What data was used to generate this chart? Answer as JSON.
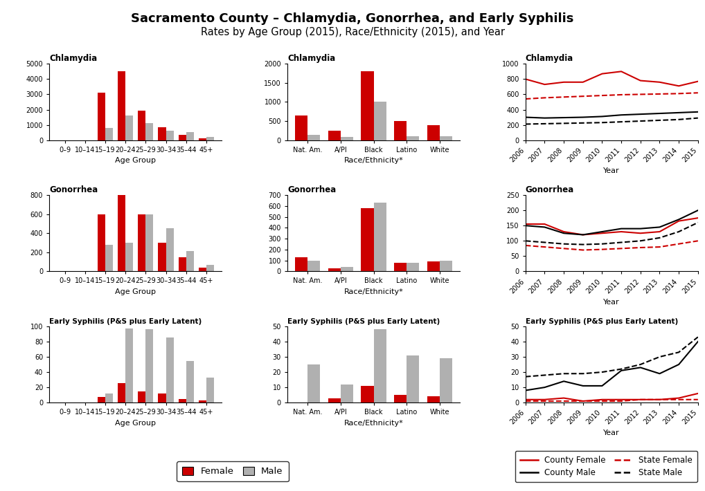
{
  "title_line1": "Sacramento County – Chlamydia, Gonorrhea, and Early Syphilis",
  "title_line2": "Rates by Age Group (2015), Race/Ethnicity (2015), and Year",
  "chlamydia_age_cats": [
    "0–9",
    "10–14",
    "15–19",
    "20–24",
    "25–29",
    "30–34",
    "35–44",
    "45+"
  ],
  "chlamydia_age_female": [
    0,
    0,
    3100,
    4500,
    1950,
    850,
    350,
    100
  ],
  "chlamydia_age_male": [
    0,
    0,
    800,
    1600,
    1100,
    600,
    550,
    200
  ],
  "chlamydia_race_cats": [
    "Nat. Am.",
    "A/PI",
    "Black",
    "Latino",
    "White"
  ],
  "chlamydia_race_female": [
    650,
    250,
    1800,
    500,
    400
  ],
  "chlamydia_race_male": [
    130,
    80,
    1000,
    100,
    100
  ],
  "chlamydia_year_years": [
    2006,
    2007,
    2008,
    2009,
    2010,
    2011,
    2012,
    2013,
    2014,
    2015
  ],
  "chlamydia_county_female": [
    800,
    730,
    760,
    760,
    870,
    900,
    780,
    760,
    710,
    770
  ],
  "chlamydia_state_female": [
    540,
    555,
    565,
    575,
    585,
    595,
    600,
    605,
    610,
    620
  ],
  "chlamydia_county_male": [
    300,
    290,
    295,
    300,
    310,
    330,
    340,
    350,
    360,
    370
  ],
  "chlamydia_state_male": [
    210,
    215,
    220,
    225,
    230,
    240,
    250,
    260,
    270,
    290
  ],
  "gonorrhea_age_cats": [
    "0–9",
    "10–14",
    "15–19",
    "20–24",
    "25–29",
    "30–34",
    "35–44",
    "45+"
  ],
  "gonorrhea_age_female": [
    0,
    0,
    600,
    800,
    600,
    300,
    150,
    40
  ],
  "gonorrhea_age_male": [
    0,
    0,
    280,
    300,
    600,
    450,
    210,
    70
  ],
  "gonorrhea_race_cats": [
    "Nat. Am.",
    "A/PI",
    "Black",
    "Latino",
    "White"
  ],
  "gonorrhea_race_female": [
    130,
    30,
    580,
    80,
    90
  ],
  "gonorrhea_race_male": [
    100,
    40,
    630,
    80,
    100
  ],
  "gonorrhea_year_years": [
    2006,
    2007,
    2008,
    2009,
    2010,
    2011,
    2012,
    2013,
    2014,
    2015
  ],
  "gonorrhea_county_female": [
    155,
    155,
    130,
    120,
    125,
    130,
    125,
    130,
    165,
    175
  ],
  "gonorrhea_state_female": [
    85,
    80,
    75,
    70,
    72,
    75,
    78,
    80,
    90,
    100
  ],
  "gonorrhea_county_male": [
    150,
    145,
    125,
    120,
    130,
    140,
    140,
    145,
    170,
    200
  ],
  "gonorrhea_state_male": [
    100,
    95,
    90,
    88,
    90,
    95,
    100,
    110,
    130,
    160
  ],
  "syphilis_age_cats": [
    "0–9",
    "10–14",
    "15–19",
    "20–24",
    "25–29",
    "30–34",
    "35–44",
    "45+"
  ],
  "syphilis_age_female": [
    0,
    0,
    7,
    26,
    15,
    12,
    5,
    3
  ],
  "syphilis_age_male": [
    0,
    0,
    12,
    97,
    96,
    85,
    55,
    33
  ],
  "syphilis_race_cats": [
    "Nat. Am.",
    "A/PI",
    "Black",
    "Latino",
    "White"
  ],
  "syphilis_race_female": [
    0,
    3,
    11,
    5,
    4
  ],
  "syphilis_race_male": [
    25,
    12,
    48,
    31,
    29
  ],
  "syphilis_year_years": [
    2006,
    2007,
    2008,
    2009,
    2010,
    2011,
    2012,
    2013,
    2014,
    2015
  ],
  "syphilis_county_female": [
    2,
    2,
    3,
    1,
    2,
    2,
    2,
    2,
    3,
    6
  ],
  "syphilis_state_female": [
    1,
    1,
    1,
    1,
    1,
    1,
    2,
    2,
    2,
    2
  ],
  "syphilis_county_male": [
    8,
    10,
    14,
    11,
    11,
    21,
    23,
    19,
    25,
    40
  ],
  "syphilis_state_male": [
    17,
    18,
    19,
    19,
    20,
    22,
    25,
    30,
    33,
    43
  ],
  "female_color": "#cc0000",
  "male_color": "#b0b0b0",
  "county_female_color": "#cc0000",
  "state_female_color": "#cc0000",
  "county_male_color": "#000000",
  "state_male_color": "#000000",
  "background_color": "#ffffff"
}
